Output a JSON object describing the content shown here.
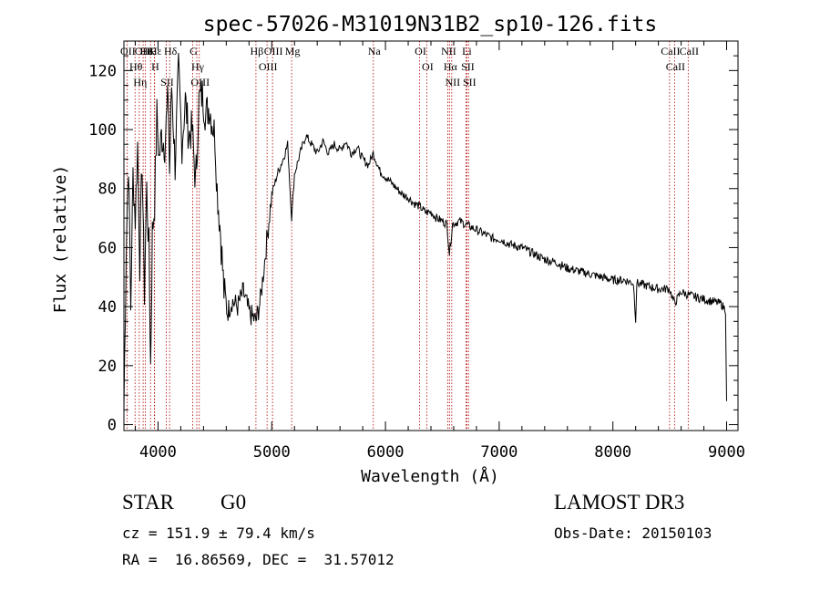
{
  "chart_data": {
    "type": "line",
    "title": "spec-57026-M31019N31B2_sp10-126.fits",
    "xlabel": "Wavelength (Å)",
    "ylabel": "Flux (relative)",
    "xlim": [
      3700,
      9100
    ],
    "ylim": [
      -2,
      130
    ],
    "xticks": [
      "4000",
      "5000",
      "6000",
      "7000",
      "8000",
      "9000"
    ],
    "yticks": [
      "0",
      "20",
      "40",
      "60",
      "80",
      "100",
      "120"
    ],
    "grid": false,
    "series": [
      {
        "x": [
          3700,
          3720,
          3740,
          3760,
          3780,
          3800,
          3820,
          3840,
          3860,
          3880,
          3900,
          3920,
          3935,
          3950,
          3970,
          3990,
          4010,
          4030,
          4060,
          4090,
          4101,
          4120,
          4150,
          4180,
          4210,
          4240,
          4270,
          4300,
          4330,
          4340,
          4360,
          4390,
          4420,
          4450,
          4480,
          4500,
          4520,
          4550,
          4580,
          4610,
          4650,
          4700,
          4750,
          4800,
          4861,
          4900,
          4950,
          5000,
          5050,
          5100,
          5140,
          5175,
          5200,
          5250,
          5300,
          5350,
          5400,
          5450,
          5500,
          5550,
          5600,
          5650,
          5700,
          5750,
          5800,
          5850,
          5893,
          5950,
          6000,
          6050,
          6100,
          6150,
          6200,
          6250,
          6300,
          6350,
          6400,
          6450,
          6500,
          6540,
          6563,
          6590,
          6650,
          6700,
          6750,
          6800,
          6850,
          6900,
          6950,
          7000,
          7100,
          7200,
          7300,
          7400,
          7500,
          7600,
          7700,
          7800,
          7900,
          8000,
          8100,
          8180,
          8200,
          8210,
          8300,
          8400,
          8498,
          8542,
          8600,
          8662,
          8750,
          8850,
          8950,
          8990,
          9000
        ],
        "y": [
          5,
          60,
          90,
          40,
          85,
          70,
          95,
          55,
          90,
          45,
          80,
          60,
          20,
          65,
          75,
          105,
          90,
          98,
          95,
          112,
          85,
          115,
          88,
          120,
          95,
          110,
          98,
          100,
          82,
          90,
          110,
          112,
          105,
          108,
          102,
          98,
          80,
          65,
          45,
          38,
          42,
          40,
          45,
          38,
          35,
          42,
          60,
          78,
          85,
          90,
          95,
          70,
          85,
          92,
          98,
          95,
          92,
          96,
          92,
          95,
          93,
          96,
          92,
          94,
          90,
          88,
          92,
          86,
          84,
          82,
          80,
          78,
          77,
          75,
          74,
          72,
          72,
          70,
          69,
          68,
          58,
          68,
          69,
          68,
          67,
          66,
          65,
          64,
          63,
          63,
          61,
          60,
          58,
          56,
          55,
          53,
          52,
          51,
          50,
          49,
          49,
          48,
          36,
          48,
          47,
          46,
          46,
          41,
          45,
          44,
          43,
          42,
          41,
          39,
          8
        ]
      }
    ],
    "lines": [
      {
        "label": "Hθ",
        "x": 3798
      },
      {
        "label": "OII",
        "x": 3727
      },
      {
        "label": "OIII",
        "x": 3869
      },
      {
        "label": "K",
        "x": 3934
      },
      {
        "label": "He",
        "x": 3889
      },
      {
        "label": "H",
        "x": 3968
      },
      {
        "label": "Hη",
        "x": 3835
      },
      {
        "label": "Hε",
        "x": 3970
      },
      {
        "label": "Hδ",
        "x": 4102
      },
      {
        "label": "SII",
        "x": 4072
      },
      {
        "label": "OIII",
        "x": 4363
      },
      {
        "label": "Hγ",
        "x": 4341
      },
      {
        "label": "G",
        "x": 4305
      },
      {
        "label": "OIII",
        "x": 5007
      },
      {
        "label": "OIII",
        "x": 4959
      },
      {
        "label": "Hβ",
        "x": 4861
      },
      {
        "label": "Mg",
        "x": 5175
      },
      {
        "label": "Na",
        "x": 5893
      },
      {
        "label": "OI",
        "x": 6300
      },
      {
        "label": "OI",
        "x": 6363
      },
      {
        "label": "Hα",
        "x": 6563
      },
      {
        "label": "NII",
        "x": 6548
      },
      {
        "label": "NII",
        "x": 6583
      },
      {
        "label": "SII",
        "x": 6716
      },
      {
        "label": "Li",
        "x": 6708
      },
      {
        "label": "SII",
        "x": 6731
      },
      {
        "label": "CaII",
        "x": 8542
      },
      {
        "label": "CaII",
        "x": 8498
      },
      {
        "label": "CaII",
        "x": 8662
      }
    ]
  },
  "info": {
    "object_class": "STAR",
    "subclass": "G0",
    "survey": "LAMOST DR3",
    "cz": "cz = 151.9 ± 79.4 km/s",
    "obs_date": "Obs-Date: 20150103",
    "radec": "RA =  16.86569, DEC =  31.57012"
  },
  "colors": {
    "spectrum": "#000000",
    "line_markers": "#b30000"
  }
}
